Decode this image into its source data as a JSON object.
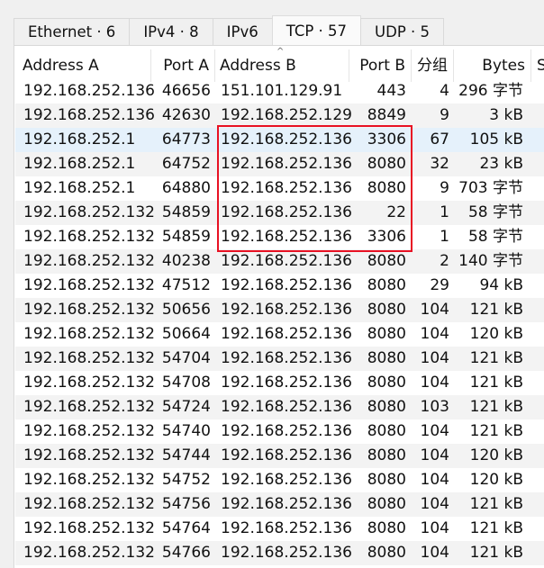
{
  "tabs": [
    {
      "label": "Ethernet · 6"
    },
    {
      "label": "IPv4 · 8"
    },
    {
      "label": "IPv6"
    },
    {
      "label": "TCP · 57",
      "selected": true
    },
    {
      "label": "UDP · 5"
    }
  ],
  "columns": [
    "Address A",
    "Port A",
    "Address B",
    "Port B",
    "分组",
    "Bytes",
    "S"
  ],
  "sort_indicator": "^",
  "highlight_color": "#e81123",
  "rows": [
    [
      "192.168.252.136",
      "46656",
      "151.101.129.91",
      "443",
      "4",
      "296 字节"
    ],
    [
      "192.168.252.136",
      "42630",
      "192.168.252.129",
      "8849",
      "9",
      "3 kB"
    ],
    [
      "192.168.252.1",
      "64773",
      "192.168.252.136",
      "3306",
      "67",
      "105 kB"
    ],
    [
      "192.168.252.1",
      "64752",
      "192.168.252.136",
      "8080",
      "32",
      "23 kB"
    ],
    [
      "192.168.252.1",
      "64880",
      "192.168.252.136",
      "8080",
      "9",
      "703 字节"
    ],
    [
      "192.168.252.132",
      "54859",
      "192.168.252.136",
      "22",
      "1",
      "58 字节"
    ],
    [
      "192.168.252.132",
      "54859",
      "192.168.252.136",
      "3306",
      "1",
      "58 字节"
    ],
    [
      "192.168.252.132",
      "40238",
      "192.168.252.136",
      "8080",
      "2",
      "140 字节"
    ],
    [
      "192.168.252.132",
      "47512",
      "192.168.252.136",
      "8080",
      "29",
      "94 kB"
    ],
    [
      "192.168.252.132",
      "50656",
      "192.168.252.136",
      "8080",
      "104",
      "121 kB"
    ],
    [
      "192.168.252.132",
      "50664",
      "192.168.252.136",
      "8080",
      "104",
      "120 kB"
    ],
    [
      "192.168.252.132",
      "54704",
      "192.168.252.136",
      "8080",
      "104",
      "121 kB"
    ],
    [
      "192.168.252.132",
      "54708",
      "192.168.252.136",
      "8080",
      "104",
      "121 kB"
    ],
    [
      "192.168.252.132",
      "54724",
      "192.168.252.136",
      "8080",
      "103",
      "121 kB"
    ],
    [
      "192.168.252.132",
      "54740",
      "192.168.252.136",
      "8080",
      "104",
      "121 kB"
    ],
    [
      "192.168.252.132",
      "54744",
      "192.168.252.136",
      "8080",
      "104",
      "120 kB"
    ],
    [
      "192.168.252.132",
      "54752",
      "192.168.252.136",
      "8080",
      "104",
      "120 kB"
    ],
    [
      "192.168.252.132",
      "54756",
      "192.168.252.136",
      "8080",
      "104",
      "121 kB"
    ],
    [
      "192.168.252.132",
      "54764",
      "192.168.252.136",
      "8080",
      "104",
      "121 kB"
    ],
    [
      "192.168.252.132",
      "54766",
      "192.168.252.136",
      "8080",
      "104",
      "121 kB"
    ]
  ]
}
